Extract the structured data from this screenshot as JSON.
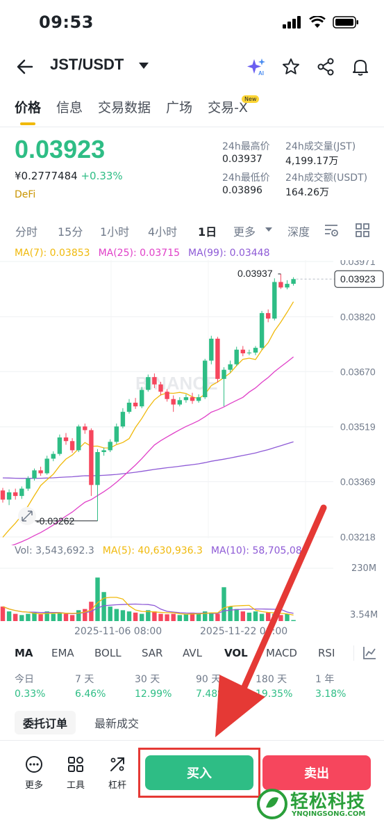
{
  "status_bar": {
    "time": "09:53"
  },
  "header": {
    "pair": "JST/USDT"
  },
  "tabs": [
    {
      "label": "价格"
    },
    {
      "label": "信息"
    },
    {
      "label": "交易数据"
    },
    {
      "label": "广场"
    },
    {
      "label": "交易-X"
    }
  ],
  "new_badge": "New",
  "price": {
    "last": "0.03923",
    "cny": "¥0.2777484",
    "change": "+0.33%",
    "tag": "DeFi"
  },
  "stats": {
    "high_label": "24h最高价",
    "high_value": "0.03937",
    "low_label": "24h最低价",
    "low_value": "0.03896",
    "vol_jst_label": "24h成交量(JST)",
    "vol_jst_value": "4,199.17万",
    "vol_usdt_label": "24h成交额(USDT)",
    "vol_usdt_value": "164.26万"
  },
  "timeframes": [
    "分时",
    "15分",
    "1小时",
    "4小时",
    "1日",
    "更多",
    "深度"
  ],
  "active_timeframe": "1日",
  "ma_legend": {
    "ma7": "MA(7): 0.03853",
    "ma25": "MA(25): 0.03715",
    "ma99": "MA(99): 0.03448"
  },
  "colors": {
    "up": "#2ebd85",
    "down": "#f6465d",
    "ma7": "#f0b90b",
    "ma25": "#e040c8",
    "ma99": "#8e5ad6",
    "accent": "#f0b90b"
  },
  "chart_data": {
    "type": "candlestick",
    "y_ticks": [
      "0.03971",
      "0.03820",
      "0.03670",
      "0.03519",
      "0.03369",
      "0.03218"
    ],
    "ylim": [
      0.03218,
      0.03971
    ],
    "high_marker": "0.03937",
    "low_marker": "0.03262",
    "current_price": "0.03923",
    "x_ticks": [
      "2025-11-06 08:00",
      "2025-11-22 08:00"
    ],
    "watermark": "BINANCE",
    "candles": [
      [
        0.03345,
        0.0332,
        0.03352,
        0.03312
      ],
      [
        0.0332,
        0.0334,
        0.03348,
        0.03305
      ],
      [
        0.0334,
        0.0333,
        0.0335,
        0.0332
      ],
      [
        0.0333,
        0.0335,
        0.03356,
        0.03322
      ],
      [
        0.0335,
        0.03378,
        0.03384,
        0.03344
      ],
      [
        0.03378,
        0.034,
        0.03405,
        0.03372
      ],
      [
        0.034,
        0.03392,
        0.0341,
        0.03385
      ],
      [
        0.03392,
        0.03432,
        0.0344,
        0.03388
      ],
      [
        0.03432,
        0.03445,
        0.03452,
        0.03425
      ],
      [
        0.03445,
        0.0349,
        0.03498,
        0.0344
      ],
      [
        0.0349,
        0.0348,
        0.03502,
        0.0347
      ],
      [
        0.0348,
        0.03455,
        0.03488,
        0.03448
      ],
      [
        0.03455,
        0.0352,
        0.03525,
        0.0345
      ],
      [
        0.0352,
        0.0351,
        0.03528,
        0.035
      ],
      [
        0.0351,
        0.0336,
        0.03515,
        0.0333
      ],
      [
        0.0336,
        0.0345,
        0.03458,
        0.03262
      ],
      [
        0.0345,
        0.03455,
        0.03462,
        0.0344
      ],
      [
        0.03455,
        0.03478,
        0.03485,
        0.0345
      ],
      [
        0.03478,
        0.0352,
        0.03528,
        0.03472
      ],
      [
        0.0352,
        0.0356,
        0.0357,
        0.03515
      ],
      [
        0.0356,
        0.03585,
        0.03595,
        0.03555
      ],
      [
        0.03585,
        0.03575,
        0.03598,
        0.03568
      ],
      [
        0.03575,
        0.0362,
        0.03628,
        0.0357
      ],
      [
        0.0362,
        0.03655,
        0.03662,
        0.03615
      ],
      [
        0.03655,
        0.03635,
        0.03665,
        0.03625
      ],
      [
        0.03635,
        0.03615,
        0.03642,
        0.03605
      ],
      [
        0.03615,
        0.03595,
        0.03622,
        0.03588
      ],
      [
        0.03595,
        0.0358,
        0.03605,
        0.0356
      ],
      [
        0.0358,
        0.03592,
        0.036,
        0.03575
      ],
      [
        0.03592,
        0.036,
        0.03608,
        0.03585
      ],
      [
        0.036,
        0.0359,
        0.03612,
        0.03582
      ],
      [
        0.0359,
        0.036,
        0.03608,
        0.03585
      ],
      [
        0.036,
        0.037,
        0.03705,
        0.03595
      ],
      [
        0.037,
        0.0376,
        0.03768,
        0.0369
      ],
      [
        0.0376,
        0.0365,
        0.03765,
        0.0364
      ],
      [
        0.0365,
        0.03675,
        0.03682,
        0.03575
      ],
      [
        0.03675,
        0.0369,
        0.037,
        0.03668
      ],
      [
        0.0369,
        0.0373,
        0.03738,
        0.03685
      ],
      [
        0.0373,
        0.0372,
        0.0374,
        0.03712
      ],
      [
        0.0372,
        0.03722,
        0.0373,
        0.03715
      ],
      [
        0.03722,
        0.03735,
        0.0374,
        0.03715
      ],
      [
        0.03735,
        0.0383,
        0.03836,
        0.0373
      ],
      [
        0.0383,
        0.03815,
        0.0384,
        0.03805
      ],
      [
        0.03815,
        0.03915,
        0.03925,
        0.0381
      ],
      [
        0.03915,
        0.039,
        0.03937,
        0.03896
      ],
      [
        0.039,
        0.0391,
        0.0392,
        0.03895
      ],
      [
        0.0391,
        0.03923,
        0.03928,
        0.03905
      ]
    ],
    "volume": {
      "label": "Vol: 3,543,692.3",
      "ma5_label": "MA(5): 40,630,936.3",
      "ma10_label": "MA(10): 58,705,08",
      "ticks": [
        "230M",
        "3.54M"
      ],
      "values": [
        60,
        40,
        30,
        25,
        30,
        35,
        28,
        40,
        30,
        35,
        30,
        25,
        45,
        50,
        80,
        180,
        120,
        60,
        50,
        45,
        40,
        35,
        30,
        45,
        40,
        30,
        28,
        30,
        25,
        30,
        35,
        30,
        40,
        35,
        30,
        140,
        60,
        50,
        40,
        35,
        40,
        30,
        35,
        30,
        25,
        30,
        3.5
      ]
    }
  },
  "indicators": [
    "MA",
    "EMA",
    "BOLL",
    "SAR",
    "AVL",
    "VOL",
    "MACD",
    "RSI"
  ],
  "active_indicator_main": "MA",
  "active_indicator_sub": "VOL",
  "performance": [
    {
      "label": "今日",
      "value": "0.33%"
    },
    {
      "label": "7 天",
      "value": "6.46%"
    },
    {
      "label": "30 天",
      "value": "12.99%"
    },
    {
      "label": "90 天",
      "value": "7.48%"
    },
    {
      "label": "180 天",
      "value": "19.35%"
    },
    {
      "label": "1 年",
      "value": "3.18%"
    }
  ],
  "order_tabs": {
    "orders": "委托订单",
    "trades": "最新成交"
  },
  "tools": {
    "more": "更多",
    "tools": "工具",
    "leverage": "杠杆"
  },
  "actions": {
    "buy": "买入",
    "sell": "卖出"
  },
  "watermark": {
    "brand": "轻松科技",
    "site": "YNQINGSONG.COM"
  }
}
